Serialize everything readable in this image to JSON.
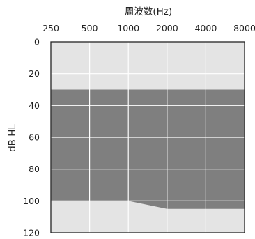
{
  "chart_data": {
    "type": "area",
    "title": "",
    "xlabel": "周波数(Hz)",
    "ylabel": "dB HL",
    "x_scale": "log2",
    "x_axis_position": "top",
    "y_inverted": true,
    "x_ticks": [
      "250",
      "500",
      "1000",
      "2000",
      "4000",
      "8000"
    ],
    "y_ticks": [
      "0",
      "20",
      "40",
      "60",
      "80",
      "100",
      "120"
    ],
    "ylim": [
      0,
      120
    ],
    "grid": true,
    "region": {
      "upper_bound": [
        {
          "x": 250,
          "y": 30
        },
        {
          "x": 500,
          "y": 30
        },
        {
          "x": 1000,
          "y": 30
        },
        {
          "x": 2000,
          "y": 30
        },
        {
          "x": 4000,
          "y": 30
        },
        {
          "x": 8000,
          "y": 30
        }
      ],
      "lower_bound": [
        {
          "x": 250,
          "y": 100
        },
        {
          "x": 500,
          "y": 100
        },
        {
          "x": 1000,
          "y": 100
        },
        {
          "x": 2000,
          "y": 105
        },
        {
          "x": 4000,
          "y": 105
        },
        {
          "x": 8000,
          "y": 105
        }
      ]
    },
    "colors": {
      "background": "#e4e4e4",
      "region": "#7f7f7f",
      "grid": "#ffffff",
      "frame": "#222222",
      "text": "#222222"
    }
  }
}
